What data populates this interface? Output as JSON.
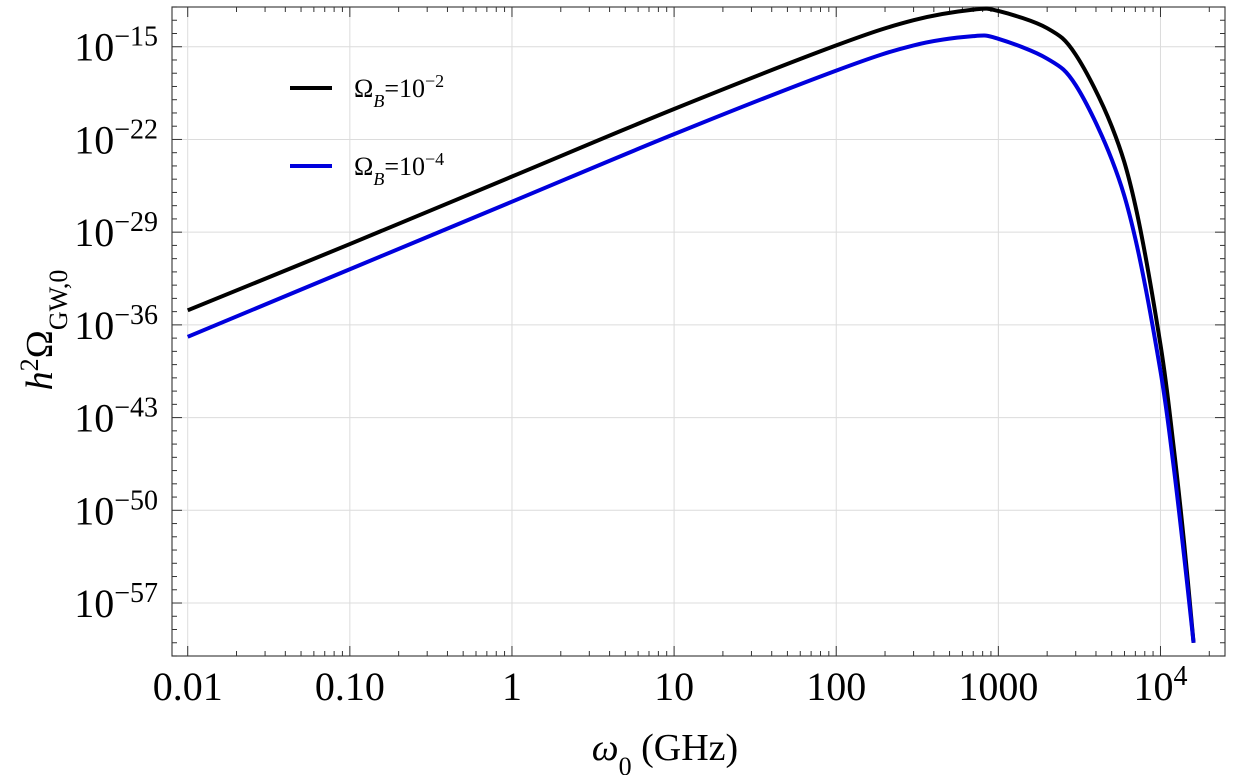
{
  "chart_data": {
    "type": "line",
    "xscale": "log",
    "yscale": "log",
    "xlim": [
      0.008,
      25000
    ],
    "ylim_exponent": [
      -61,
      -12
    ],
    "grid": true,
    "legend_placement": "top-left",
    "xlabel": {
      "symbol": "ω",
      "sub": "0",
      "unit": " (GHz)"
    },
    "ylabel": {
      "base": "h",
      "sup": "2",
      "symbol": "Ω",
      "sub": "GW,0"
    },
    "x_ticks": [
      {
        "value": 0.01,
        "label": "0.01"
      },
      {
        "value": 0.1,
        "label": "0.10"
      },
      {
        "value": 1,
        "label": "1"
      },
      {
        "value": 10,
        "label": "10"
      },
      {
        "value": 100,
        "label": "100"
      },
      {
        "value": 1000,
        "label": "1000"
      },
      {
        "value": 10000,
        "label": "10",
        "sup": "4"
      }
    ],
    "y_ticks": [
      {
        "exponent": -15,
        "label": "10",
        "sup": "−15"
      },
      {
        "exponent": -22,
        "label": "10",
        "sup": "−22"
      },
      {
        "exponent": -29,
        "label": "10",
        "sup": "−29"
      },
      {
        "exponent": -36,
        "label": "10",
        "sup": "−36"
      },
      {
        "exponent": -43,
        "label": "10",
        "sup": "−43"
      },
      {
        "exponent": -50,
        "label": "10",
        "sup": "−50"
      },
      {
        "exponent": -57,
        "label": "10",
        "sup": "−57"
      }
    ],
    "series": [
      {
        "name": "Ω_B=10^-2",
        "legend": {
          "symbol": "Ω",
          "sub": "B",
          "text": "=10",
          "sup": "−2"
        },
        "color": "#000000",
        "x": [
          0.01,
          0.1,
          1,
          10,
          100,
          300,
          700,
          1000,
          2000,
          3000,
          5000,
          7000,
          10000,
          12000,
          14000,
          16000
        ],
        "y_exponent": [
          -34.9,
          -29.9,
          -24.8,
          -19.7,
          -14.9,
          -13.0,
          -12.2,
          -12.3,
          -13.6,
          -15.6,
          -21.0,
          -27.0,
          -37.5,
          -45.0,
          -52.5,
          -60.0
        ]
      },
      {
        "name": "Ω_B=10^-4",
        "legend": {
          "symbol": "Ω",
          "sub": "B",
          "text": "=10",
          "sup": "−4"
        },
        "color": "#0000dd",
        "x": [
          0.01,
          0.1,
          1,
          10,
          100,
          300,
          700,
          1000,
          2000,
          3000,
          5000,
          7000,
          10000,
          12000,
          14000,
          16000
        ],
        "y_exponent": [
          -36.9,
          -31.8,
          -26.7,
          -21.6,
          -16.8,
          -14.9,
          -14.2,
          -14.4,
          -15.9,
          -17.9,
          -23.5,
          -29.5,
          -39.5,
          -46.5,
          -53.5,
          -60.0
        ]
      }
    ]
  }
}
